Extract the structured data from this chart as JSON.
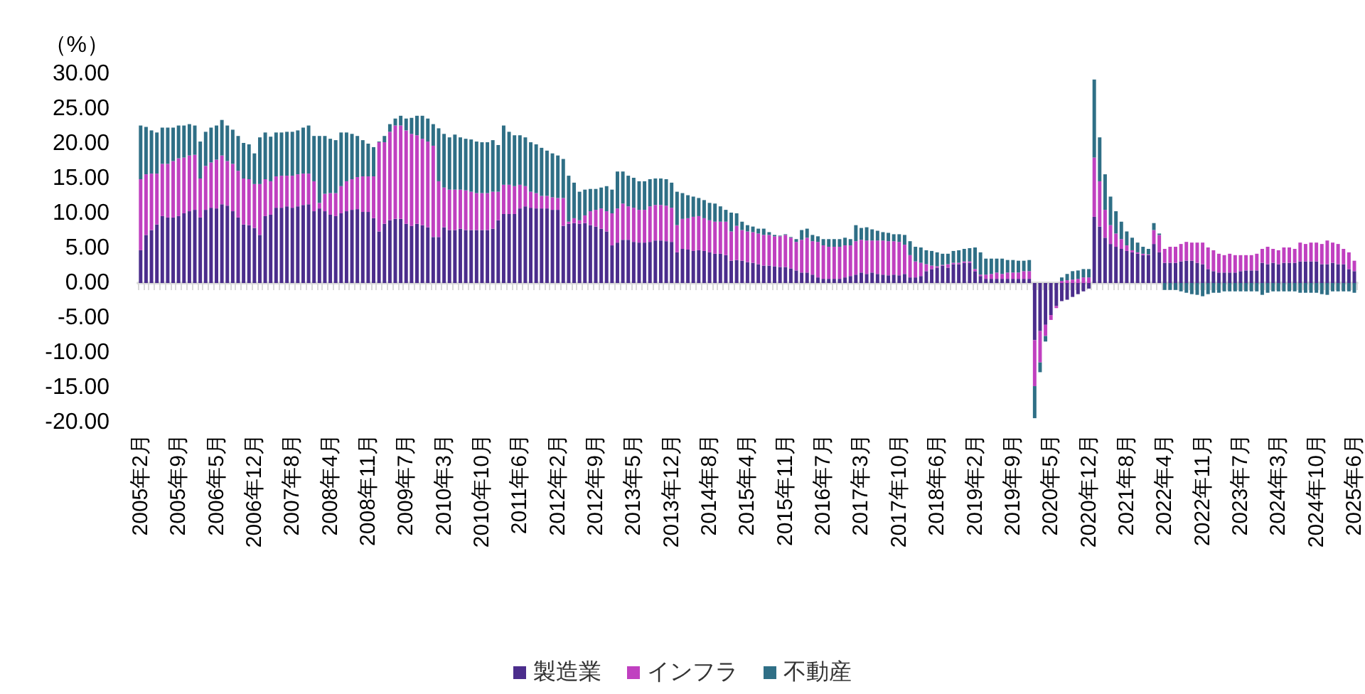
{
  "chart_data": {
    "type": "bar",
    "stacked": true,
    "ylabel": "（%）",
    "legend": "bottom",
    "ylim": [
      -20,
      30
    ],
    "yticks": [
      {
        "value": -20,
        "label": "-20.00"
      },
      {
        "value": -15,
        "label": "-15.00"
      },
      {
        "value": -10,
        "label": "-10.00"
      },
      {
        "value": -5,
        "label": "-5.00"
      },
      {
        "value": 0,
        "label": "0.00"
      },
      {
        "value": 5,
        "label": "5.00"
      },
      {
        "value": 10,
        "label": "10.00"
      },
      {
        "value": 15,
        "label": "15.00"
      },
      {
        "value": 20,
        "label": "20.00"
      },
      {
        "value": 25,
        "label": "25.00"
      },
      {
        "value": 30,
        "label": "30.00"
      }
    ],
    "categories": [
      "2005年2月",
      null,
      null,
      null,
      null,
      null,
      null,
      "2005年9月",
      null,
      null,
      null,
      null,
      null,
      null,
      "2006年5月",
      null,
      null,
      null,
      null,
      null,
      null,
      "2006年12月",
      null,
      null,
      null,
      null,
      null,
      null,
      "2007年8月",
      null,
      null,
      null,
      null,
      null,
      null,
      "2008年4月",
      null,
      null,
      null,
      null,
      null,
      null,
      "2008年11月",
      null,
      null,
      null,
      null,
      null,
      null,
      "2009年7月",
      null,
      null,
      null,
      null,
      null,
      null,
      "2010年3月",
      null,
      null,
      null,
      null,
      null,
      null,
      "2010年10月",
      null,
      null,
      null,
      null,
      null,
      null,
      "2011年6月",
      null,
      null,
      null,
      null,
      null,
      null,
      "2012年2月",
      null,
      null,
      null,
      null,
      null,
      null,
      "2012年9月",
      null,
      null,
      null,
      null,
      null,
      null,
      "2013年5月",
      null,
      null,
      null,
      null,
      null,
      null,
      "2013年12月",
      null,
      null,
      null,
      null,
      null,
      null,
      "2014年8月",
      null,
      null,
      null,
      null,
      null,
      null,
      "2015年4月",
      null,
      null,
      null,
      null,
      null,
      null,
      "2015年11月",
      null,
      null,
      null,
      null,
      null,
      null,
      "2016年7月",
      null,
      null,
      null,
      null,
      null,
      null,
      "2017年3月",
      null,
      null,
      null,
      null,
      null,
      null,
      "2017年10月",
      null,
      null,
      null,
      null,
      null,
      null,
      "2018年6月",
      null,
      null,
      null,
      null,
      null,
      null,
      "2019年2月",
      null,
      null,
      null,
      null,
      null,
      null,
      "2019年9月",
      null,
      null,
      null,
      null,
      null,
      null,
      "2020年5月",
      null,
      null,
      null,
      null,
      null,
      null,
      "2020年12月",
      null,
      null,
      null,
      null,
      null,
      null,
      "2021年8月",
      null,
      null,
      null,
      null,
      null,
      null,
      "2022年4月",
      null,
      null,
      null,
      null,
      null,
      null,
      "2022年11月",
      null,
      null,
      null,
      null,
      null,
      null,
      "2023年7月",
      null,
      null,
      null,
      null,
      null,
      null,
      "2024年3月",
      null,
      null,
      null,
      null,
      null,
      null,
      "2024年10月",
      null,
      null,
      null,
      null,
      null,
      null,
      "2025年6月"
    ],
    "series": [
      {
        "name": "製造業",
        "color": "#4b2d8c",
        "values": [
          4.7,
          6.9,
          7.6,
          8.4,
          9.6,
          9.4,
          9.4,
          9.6,
          10.0,
          10.3,
          10.5,
          9.4,
          10.5,
          10.8,
          10.7,
          11.3,
          11.1,
          10.3,
          9.4,
          8.4,
          8.3,
          7.9,
          6.9,
          9.6,
          9.8,
          10.8,
          10.8,
          11.0,
          10.8,
          11.0,
          11.2,
          11.3,
          10.3,
          10.7,
          10.3,
          9.8,
          9.6,
          10.0,
          10.3,
          10.5,
          10.6,
          10.2,
          10.2,
          9.3,
          7.4,
          8.5,
          9.0,
          9.2,
          9.2,
          8.5,
          8.2,
          8.5,
          8.3,
          8.0,
          6.6,
          6.6,
          8.0,
          7.6,
          7.6,
          7.8,
          7.6,
          7.6,
          7.6,
          7.6,
          7.6,
          7.8,
          9.0,
          9.9,
          9.9,
          9.9,
          10.7,
          11.0,
          10.8,
          10.7,
          10.7,
          10.7,
          10.5,
          10.5,
          8.2,
          8.5,
          8.6,
          8.5,
          8.6,
          8.3,
          8.1,
          7.8,
          7.4,
          5.4,
          5.8,
          6.2,
          6.2,
          5.9,
          5.8,
          5.8,
          5.9,
          6.1,
          6.1,
          6.0,
          5.9,
          4.4,
          4.9,
          4.8,
          4.6,
          4.7,
          4.6,
          4.4,
          4.2,
          4.2,
          4.0,
          3.2,
          3.3,
          3.2,
          3.0,
          2.9,
          2.7,
          2.5,
          2.5,
          2.4,
          2.3,
          2.3,
          2.1,
          1.8,
          1.5,
          1.5,
          1.2,
          0.8,
          0.6,
          0.6,
          0.6,
          0.6,
          0.8,
          1.0,
          1.2,
          1.5,
          1.3,
          1.5,
          1.3,
          1.2,
          1.1,
          1.2,
          1.1,
          1.3,
          0.8,
          0.8,
          1.0,
          1.7,
          2.0,
          2.2,
          2.5,
          2.2,
          2.7,
          2.7,
          2.9,
          2.9,
          1.7,
          1.0,
          0.6,
          0.6,
          0.6,
          0.6,
          0.6,
          0.6,
          0.6,
          0.6,
          0.6,
          -8.2,
          -6.9,
          -6.0,
          -4.6,
          -3.3,
          -2.6,
          -2.4,
          -2.0,
          -1.6,
          -1.2,
          -0.8,
          9.5,
          8.1,
          6.5,
          5.6,
          5.2,
          4.9,
          4.6,
          4.4,
          4.2,
          4.0,
          4.0,
          5.6,
          4.4,
          2.9,
          2.9,
          2.9,
          3.1,
          3.2,
          3.2,
          2.9,
          2.7,
          2.0,
          1.7,
          1.5,
          1.5,
          1.5,
          1.5,
          1.7,
          1.8,
          1.8,
          1.8,
          2.9,
          2.7,
          2.9,
          2.7,
          2.9,
          2.9,
          2.9,
          3.1,
          3.1,
          3.1,
          3.1,
          2.7,
          2.7,
          2.9,
          2.7,
          2.7,
          2.0,
          1.7
        ]
      },
      {
        "name": "インフラ",
        "color": "#c040c0",
        "values": [
          10.2,
          8.7,
          8.1,
          7.3,
          7.5,
          7.7,
          8.1,
          8.3,
          8.0,
          8.0,
          7.9,
          5.6,
          6.3,
          6.5,
          7.0,
          7.0,
          6.4,
          6.8,
          6.7,
          6.6,
          6.6,
          6.3,
          7.3,
          5.3,
          4.8,
          4.5,
          4.6,
          4.4,
          4.6,
          4.6,
          4.5,
          4.4,
          4.3,
          0.8,
          2.5,
          3.1,
          3.3,
          3.9,
          4.3,
          4.4,
          4.6,
          5.1,
          5.1,
          6.0,
          12.8,
          11.7,
          12.7,
          13.4,
          13.4,
          13.4,
          13.2,
          12.7,
          12.4,
          12.3,
          13.1,
          8.0,
          5.7,
          5.8,
          5.8,
          5.6,
          5.7,
          5.5,
          5.3,
          5.3,
          5.3,
          5.3,
          4.1,
          4.2,
          4.2,
          4.0,
          3.4,
          2.9,
          2.3,
          2.2,
          1.8,
          1.8,
          1.8,
          1.7,
          4.0,
          0.3,
          0.7,
          0.5,
          1.1,
          2.0,
          2.4,
          2.9,
          2.9,
          4.6,
          4.9,
          5.2,
          4.8,
          4.9,
          4.7,
          4.7,
          5.1,
          5.1,
          5.1,
          5.1,
          4.9,
          3.9,
          4.3,
          4.5,
          4.9,
          4.9,
          4.7,
          4.6,
          4.6,
          4.6,
          4.8,
          4.2,
          4.9,
          4.4,
          4.4,
          4.4,
          4.4,
          4.4,
          4.4,
          4.3,
          4.4,
          4.6,
          4.4,
          4.1,
          4.7,
          5.0,
          4.8,
          5.1,
          4.8,
          4.6,
          4.6,
          4.6,
          4.6,
          4.4,
          4.8,
          4.7,
          4.8,
          4.6,
          4.8,
          4.9,
          4.9,
          4.8,
          4.8,
          4.2,
          3.2,
          2.3,
          1.9,
          1.0,
          0.5,
          0.2,
          0.1,
          0.5,
          0.2,
          0.2,
          0.2,
          0.2,
          0.3,
          0.2,
          0.6,
          0.7,
          0.9,
          0.7,
          0.9,
          0.9,
          0.9,
          1.1,
          1.1,
          -6.6,
          -4.5,
          -1.6,
          -0.7,
          -0.3,
          0.3,
          0.4,
          0.5,
          0.6,
          0.8,
          0.8,
          8.5,
          6.5,
          4.0,
          2.7,
          1.9,
          1.4,
          0.8,
          0.3,
          0.2,
          0.2,
          0.1,
          2.0,
          2.5,
          2.0,
          2.3,
          2.3,
          2.5,
          2.7,
          2.6,
          2.9,
          3.1,
          3.1,
          3.0,
          2.7,
          2.5,
          2.7,
          2.5,
          2.3,
          2.2,
          2.2,
          2.4,
          2.0,
          2.5,
          2.0,
          2.0,
          2.2,
          2.2,
          2.0,
          2.7,
          2.5,
          2.7,
          2.7,
          2.9,
          3.4,
          2.9,
          2.9,
          2.2,
          2.4,
          1.5
        ]
      },
      {
        "name": "不動産",
        "color": "#2f6f86",
        "values": [
          7.7,
          6.8,
          6.2,
          5.9,
          5.2,
          5.2,
          4.8,
          4.7,
          4.6,
          4.5,
          4.2,
          5.3,
          4.9,
          5.0,
          4.9,
          5.1,
          5.1,
          4.9,
          5.0,
          5.1,
          5.0,
          4.4,
          6.7,
          6.7,
          6.4,
          6.3,
          6.2,
          6.3,
          6.3,
          6.3,
          6.6,
          6.9,
          6.5,
          9.6,
          8.3,
          7.8,
          7.6,
          7.7,
          7.0,
          6.5,
          5.9,
          5.2,
          4.7,
          4.2,
          0.1,
          0.9,
          1.1,
          1.0,
          1.4,
          1.7,
          2.3,
          2.8,
          3.3,
          3.3,
          3.1,
          7.6,
          7.7,
          7.5,
          7.9,
          7.5,
          7.4,
          7.5,
          7.4,
          7.3,
          7.3,
          7.4,
          6.7,
          8.5,
          7.6,
          7.3,
          7.1,
          7.0,
          7.1,
          7.0,
          6.9,
          6.5,
          6.3,
          6.1,
          5.6,
          6.6,
          5.1,
          4.1,
          3.7,
          3.2,
          3.0,
          3.0,
          3.6,
          3.4,
          5.3,
          4.6,
          4.4,
          4.3,
          4.1,
          4.1,
          3.9,
          3.8,
          3.8,
          3.8,
          3.6,
          4.8,
          3.7,
          3.3,
          2.9,
          2.6,
          2.6,
          2.5,
          2.6,
          2.2,
          1.7,
          2.7,
          1.8,
          1.2,
          0.9,
          0.8,
          0.7,
          0.9,
          0.4,
          0.2,
          0.1,
          0.1,
          0.1,
          0.4,
          1.4,
          1.3,
          0.9,
          0.8,
          0.9,
          1.1,
          1.1,
          1.1,
          1.1,
          0.9,
          2.3,
          1.7,
          1.9,
          1.6,
          1.4,
          1.2,
          1.2,
          1.0,
          1.1,
          1.4,
          2.0,
          2.1,
          2.2,
          2.0,
          2.1,
          2.0,
          1.6,
          1.5,
          1.7,
          1.8,
          1.8,
          1.9,
          3.1,
          3.2,
          2.3,
          2.2,
          2.0,
          2.2,
          1.8,
          1.8,
          1.7,
          1.5,
          1.6,
          -4.6,
          -1.4,
          -0.8,
          0.0,
          null,
          0.5,
          0.9,
          1.2,
          1.2,
          1.2,
          1.2,
          11.2,
          6.3,
          5.1,
          4.1,
          3.2,
          2.5,
          2.0,
          1.8,
          1.4,
          1.0,
          0.8,
          1.0,
          0.2,
          -1.0,
          -1.0,
          -1.0,
          -1.2,
          -1.4,
          -1.6,
          -1.7,
          -1.9,
          -1.6,
          -1.4,
          -1.4,
          -1.2,
          -1.2,
          -1.2,
          -1.2,
          -1.2,
          -1.2,
          -1.2,
          -1.7,
          -1.4,
          -1.2,
          -1.2,
          -1.2,
          -1.2,
          -1.2,
          -1.4,
          -1.4,
          -1.4,
          -1.4,
          -1.6,
          -1.7,
          -1.2,
          -1.2,
          -1.2,
          -1.2,
          -1.4
        ]
      }
    ]
  }
}
